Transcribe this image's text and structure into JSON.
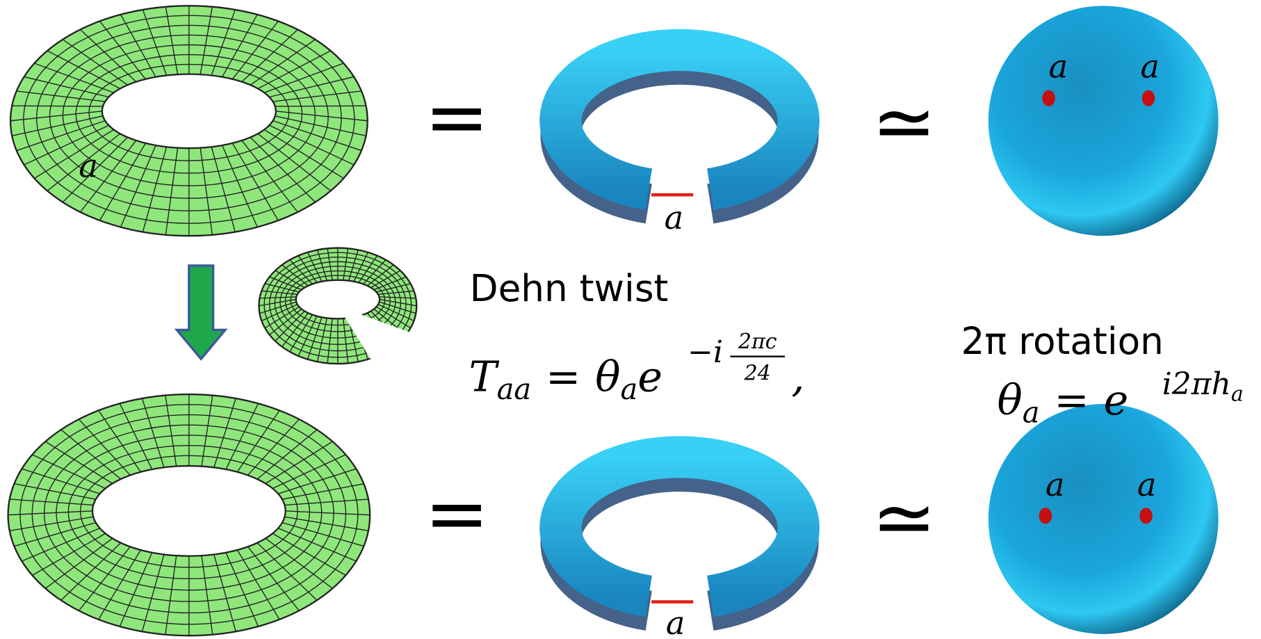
{
  "top_row": {
    "torus_label": "a",
    "equals": "=",
    "ribbon_label": "a",
    "similar": "≃",
    "sphere_labels": [
      "a",
      "a"
    ]
  },
  "bottom_row": {
    "equals": "=",
    "ribbon_label": "a",
    "similar": "≃",
    "sphere_labels": [
      "a",
      "a"
    ]
  },
  "dehn_twist": {
    "title": "Dehn twist",
    "formula": {
      "symbol": "T",
      "subscript": "aa",
      "equals": "=",
      "theta": "θ",
      "theta_subscript": "a",
      "base": "e",
      "exponent": "−i",
      "numerator": "2πc",
      "denominator": "24",
      "comma": ","
    }
  },
  "rotation": {
    "title": "2π rotation",
    "formula": {
      "theta": "θ",
      "theta_subscript": "a",
      "equals": "=",
      "base": "e",
      "exponent": "i2πh",
      "exponent_subscript": "a"
    }
  }
}
